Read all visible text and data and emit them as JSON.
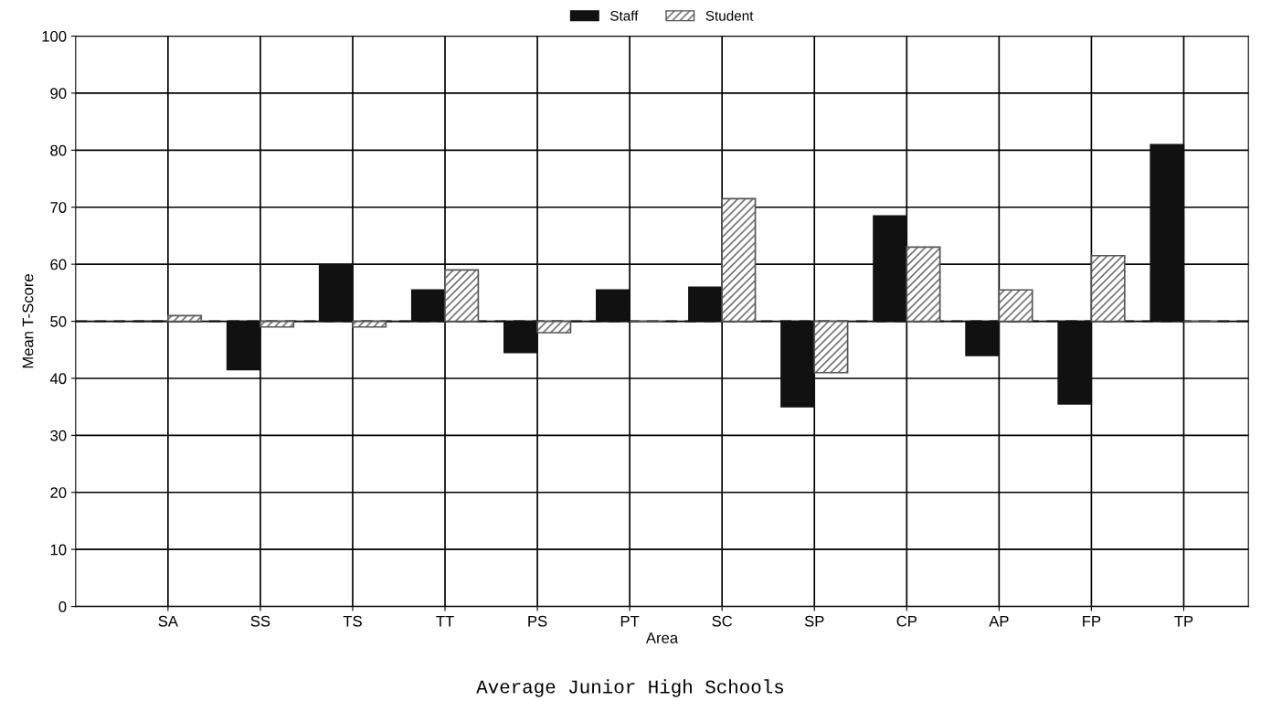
{
  "chart_data": {
    "type": "bar",
    "xlabel": "Area",
    "ylabel": "Mean T-Score",
    "categories": [
      "SA",
      "SS",
      "TS",
      "TT",
      "PS",
      "PT",
      "SC",
      "SP",
      "CP",
      "AP",
      "FP",
      "TP"
    ],
    "series": [
      {
        "name": "Staff",
        "color": "#111111",
        "base": [
          50,
          50,
          50,
          50,
          50,
          50,
          50,
          50,
          50,
          50,
          50,
          50
        ],
        "values": [
          0,
          -8.5,
          10,
          5.5,
          -5.5,
          5.5,
          6,
          -15,
          18.5,
          -6,
          -14.5,
          31
        ]
      },
      {
        "name": "Student",
        "color": "#555555",
        "base": [
          50,
          50,
          50,
          50,
          50,
          50,
          50,
          50,
          50,
          50,
          50,
          50
        ],
        "values": [
          1,
          -1,
          -1,
          9,
          -2,
          0,
          21.5,
          -9,
          13,
          5.5,
          11.5,
          0
        ]
      }
    ],
    "ylim": [
      0,
      100
    ],
    "yticks": [
      0,
      10,
      20,
      30,
      40,
      50,
      60,
      70,
      80,
      90,
      100
    ],
    "ref_lines": [
      {
        "axis": "y",
        "value": 50,
        "line_style": "dashed",
        "color": "#111111"
      }
    ],
    "grid": true,
    "legend": "top",
    "annotations": [
      "Average Junior High Schools"
    ]
  }
}
